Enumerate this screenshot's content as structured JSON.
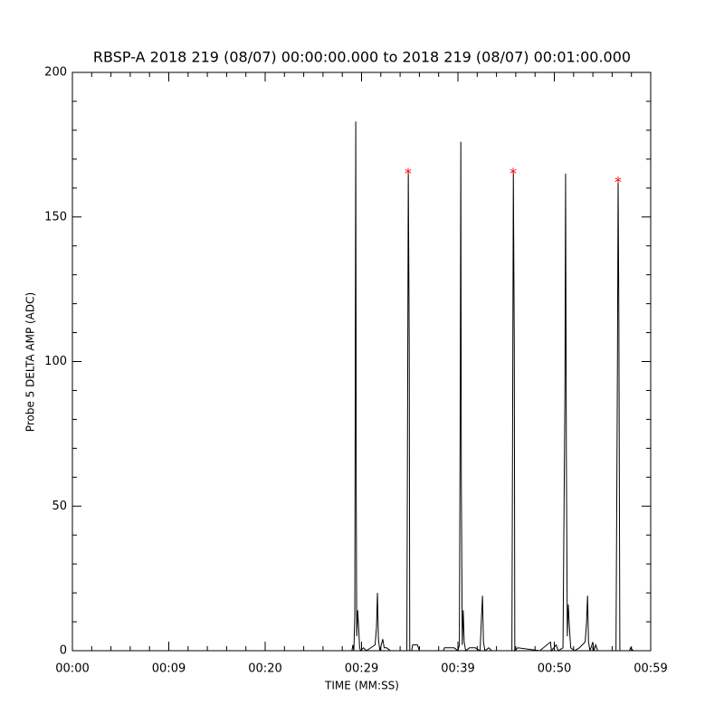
{
  "chart_data": {
    "type": "line",
    "title": "RBSP-A 2018 219 (08/07) 00:00:00.000 to 2018 219 (08/07) 00:01:00.000",
    "x_label": "TIME (MM:SS)",
    "y_label": "Probe 5 DELTA AMP (ADC)",
    "xlim": [
      0,
      60
    ],
    "ylim": [
      0,
      200
    ],
    "xticks": [
      {
        "value": 0,
        "label": "00:00"
      },
      {
        "value": 10,
        "label": "00:09"
      },
      {
        "value": 20,
        "label": "00:20"
      },
      {
        "value": 30,
        "label": "00:29"
      },
      {
        "value": 40,
        "label": "00:39"
      },
      {
        "value": 50,
        "label": "00:50"
      },
      {
        "value": 60,
        "label": "00:59"
      }
    ],
    "yticks": [
      0,
      50,
      100,
      150,
      200
    ],
    "series": [
      {
        "color": "#000000",
        "x": [
          29.0,
          29.1,
          29.2,
          29.3,
          29.35,
          29.4,
          29.45,
          29.5,
          29.6,
          29.7,
          29.8,
          29.9,
          30.2,
          30.5,
          31.4,
          31.55,
          31.65,
          31.75,
          31.9,
          32.2,
          32.35,
          32.6,
          33.0,
          34.7,
          34.8,
          34.85,
          34.95,
          35.0,
          35.2,
          35.3,
          35.8,
          36.0,
          38.5,
          38.6,
          39.6,
          40.0,
          40.15,
          40.25,
          40.3,
          40.35,
          40.45,
          40.55,
          40.65,
          40.8,
          41.2,
          41.8,
          42.3,
          42.45,
          42.55,
          42.65,
          42.8,
          43.2,
          43.5,
          45.6,
          45.7,
          45.75,
          45.85,
          45.9,
          46.2,
          48.5,
          49.6,
          49.7,
          50.2,
          50.4,
          50.9,
          51.1,
          51.17,
          51.25,
          51.35,
          51.45,
          51.55,
          51.7,
          52.1,
          52.6,
          53.2,
          53.35,
          53.45,
          53.55,
          53.7,
          54.0,
          54.1,
          54.3,
          54.5,
          56.4,
          56.55,
          56.62,
          56.7,
          56.8,
          57.0,
          57.8,
          57.9,
          58.2
        ],
        "values": [
          0,
          2,
          0,
          12,
          105,
          183,
          53,
          5,
          14,
          8,
          1,
          0,
          1,
          0,
          2,
          8,
          20,
          4,
          0,
          4,
          1,
          1,
          0,
          0,
          108,
          166,
          103,
          0,
          0,
          2,
          2,
          0,
          0,
          1,
          1,
          0,
          2,
          97,
          176,
          60,
          2,
          14,
          3,
          0,
          1,
          1,
          0,
          12,
          19,
          3,
          0,
          1,
          0,
          0,
          108,
          166,
          103,
          0,
          1,
          0,
          3,
          0,
          2,
          0,
          1,
          89,
          165,
          68,
          5,
          16,
          9,
          1,
          0,
          1,
          3,
          10,
          19,
          3,
          0,
          3,
          0,
          2,
          0,
          0,
          98,
          163,
          113,
          0,
          0,
          0,
          1,
          0
        ]
      },
      {
        "color": "#ff0000",
        "marker": "*",
        "x": [
          34.84,
          45.73,
          56.62
        ],
        "values": [
          166,
          166,
          163
        ]
      }
    ]
  }
}
